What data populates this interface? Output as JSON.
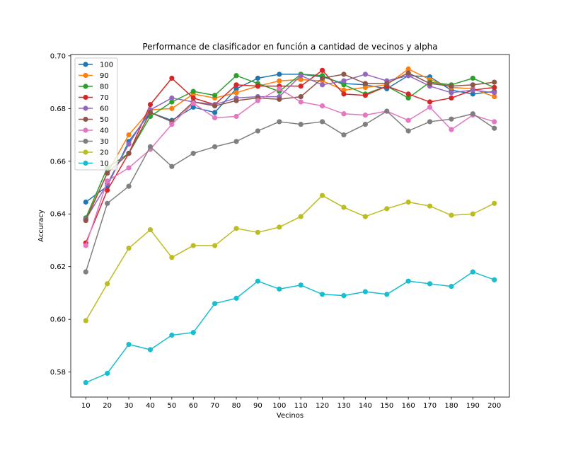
{
  "chart_data": {
    "type": "line",
    "title": "Performance de clasificador en función a cantidad de vecinos y alpha",
    "xlabel": "Vecinos",
    "ylabel": "Accuracy",
    "x": [
      10,
      20,
      30,
      40,
      50,
      60,
      70,
      80,
      90,
      100,
      110,
      120,
      130,
      140,
      150,
      160,
      170,
      180,
      190,
      200
    ],
    "x_tick_labels": [
      "10",
      "20",
      "30",
      "40",
      "50",
      "60",
      "70",
      "80",
      "90",
      "100",
      "110",
      "120",
      "130",
      "140",
      "150",
      "160",
      "170",
      "180",
      "190",
      "200"
    ],
    "xlim": [
      3,
      207
    ],
    "ylim": [
      0.5705,
      0.7005
    ],
    "y_ticks": [
      0.58,
      0.6,
      0.62,
      0.64,
      0.66,
      0.68,
      0.7
    ],
    "y_tick_labels": [
      "0.58",
      "0.60",
      "0.62",
      "0.64",
      "0.66",
      "0.68",
      "0.70"
    ],
    "grid": false,
    "legend_position": "top-left",
    "series": [
      {
        "name": "100",
        "color": "#1f77b4",
        "values": [
          0.6445,
          0.6505,
          0.6675,
          0.6785,
          0.6755,
          0.6805,
          0.6785,
          0.6875,
          0.6915,
          0.693,
          0.693,
          0.692,
          0.6895,
          0.689,
          0.6875,
          0.6925,
          0.692,
          0.687,
          0.6855,
          0.6865
        ]
      },
      {
        "name": "90",
        "color": "#ff7f0e",
        "values": [
          0.638,
          0.6555,
          0.67,
          0.6795,
          0.68,
          0.6855,
          0.684,
          0.686,
          0.6885,
          0.6905,
          0.691,
          0.6905,
          0.687,
          0.688,
          0.689,
          0.695,
          0.691,
          0.688,
          0.6875,
          0.6845
        ]
      },
      {
        "name": "80",
        "color": "#2ca02c",
        "values": [
          0.6385,
          0.6575,
          0.663,
          0.677,
          0.6825,
          0.6865,
          0.685,
          0.6925,
          0.6895,
          0.6865,
          0.693,
          0.6925,
          0.689,
          0.6855,
          0.6885,
          0.684,
          0.69,
          0.689,
          0.6915,
          0.688
        ]
      },
      {
        "name": "70",
        "color": "#d62728",
        "values": [
          0.629,
          0.649,
          0.663,
          0.6815,
          0.6915,
          0.684,
          0.6815,
          0.689,
          0.6885,
          0.6885,
          0.6885,
          0.6945,
          0.6855,
          0.685,
          0.6885,
          0.6855,
          0.6825,
          0.684,
          0.687,
          0.688
        ]
      },
      {
        "name": "60",
        "color": "#9467bd",
        "values": [
          0.638,
          0.6515,
          0.6665,
          0.6795,
          0.684,
          0.6825,
          0.6815,
          0.684,
          0.6845,
          0.6845,
          0.6925,
          0.689,
          0.6905,
          0.693,
          0.6905,
          0.6925,
          0.6885,
          0.686,
          0.687,
          0.686
        ]
      },
      {
        "name": "50",
        "color": "#8c564b",
        "values": [
          0.6375,
          0.6555,
          0.663,
          0.6785,
          0.675,
          0.6825,
          0.681,
          0.683,
          0.684,
          0.6835,
          0.6845,
          0.6915,
          0.693,
          0.6895,
          0.6895,
          0.6935,
          0.6895,
          0.6885,
          0.689,
          0.69
        ]
      },
      {
        "name": "40",
        "color": "#e377c2",
        "values": [
          0.628,
          0.6525,
          0.6575,
          0.6645,
          0.674,
          0.682,
          0.6765,
          0.677,
          0.683,
          0.6875,
          0.6825,
          0.681,
          0.678,
          0.6775,
          0.679,
          0.6755,
          0.6805,
          0.672,
          0.6775,
          0.675
        ]
      },
      {
        "name": "30",
        "color": "#7f7f7f",
        "values": [
          0.618,
          0.644,
          0.6505,
          0.6655,
          0.658,
          0.663,
          0.6655,
          0.6675,
          0.6715,
          0.675,
          0.674,
          0.675,
          0.67,
          0.674,
          0.679,
          0.6715,
          0.675,
          0.676,
          0.678,
          0.6725
        ]
      },
      {
        "name": "20",
        "color": "#bcbd22",
        "values": [
          0.5995,
          0.6135,
          0.627,
          0.634,
          0.6235,
          0.628,
          0.628,
          0.6345,
          0.633,
          0.635,
          0.639,
          0.647,
          0.6425,
          0.639,
          0.642,
          0.6445,
          0.643,
          0.6395,
          0.64,
          0.644
        ]
      },
      {
        "name": "10",
        "color": "#17becf",
        "values": [
          0.576,
          0.5795,
          0.5905,
          0.5885,
          0.594,
          0.595,
          0.606,
          0.608,
          0.6145,
          0.6115,
          0.613,
          0.6095,
          0.609,
          0.6105,
          0.6095,
          0.6145,
          0.6135,
          0.6125,
          0.618,
          0.615
        ]
      }
    ]
  }
}
